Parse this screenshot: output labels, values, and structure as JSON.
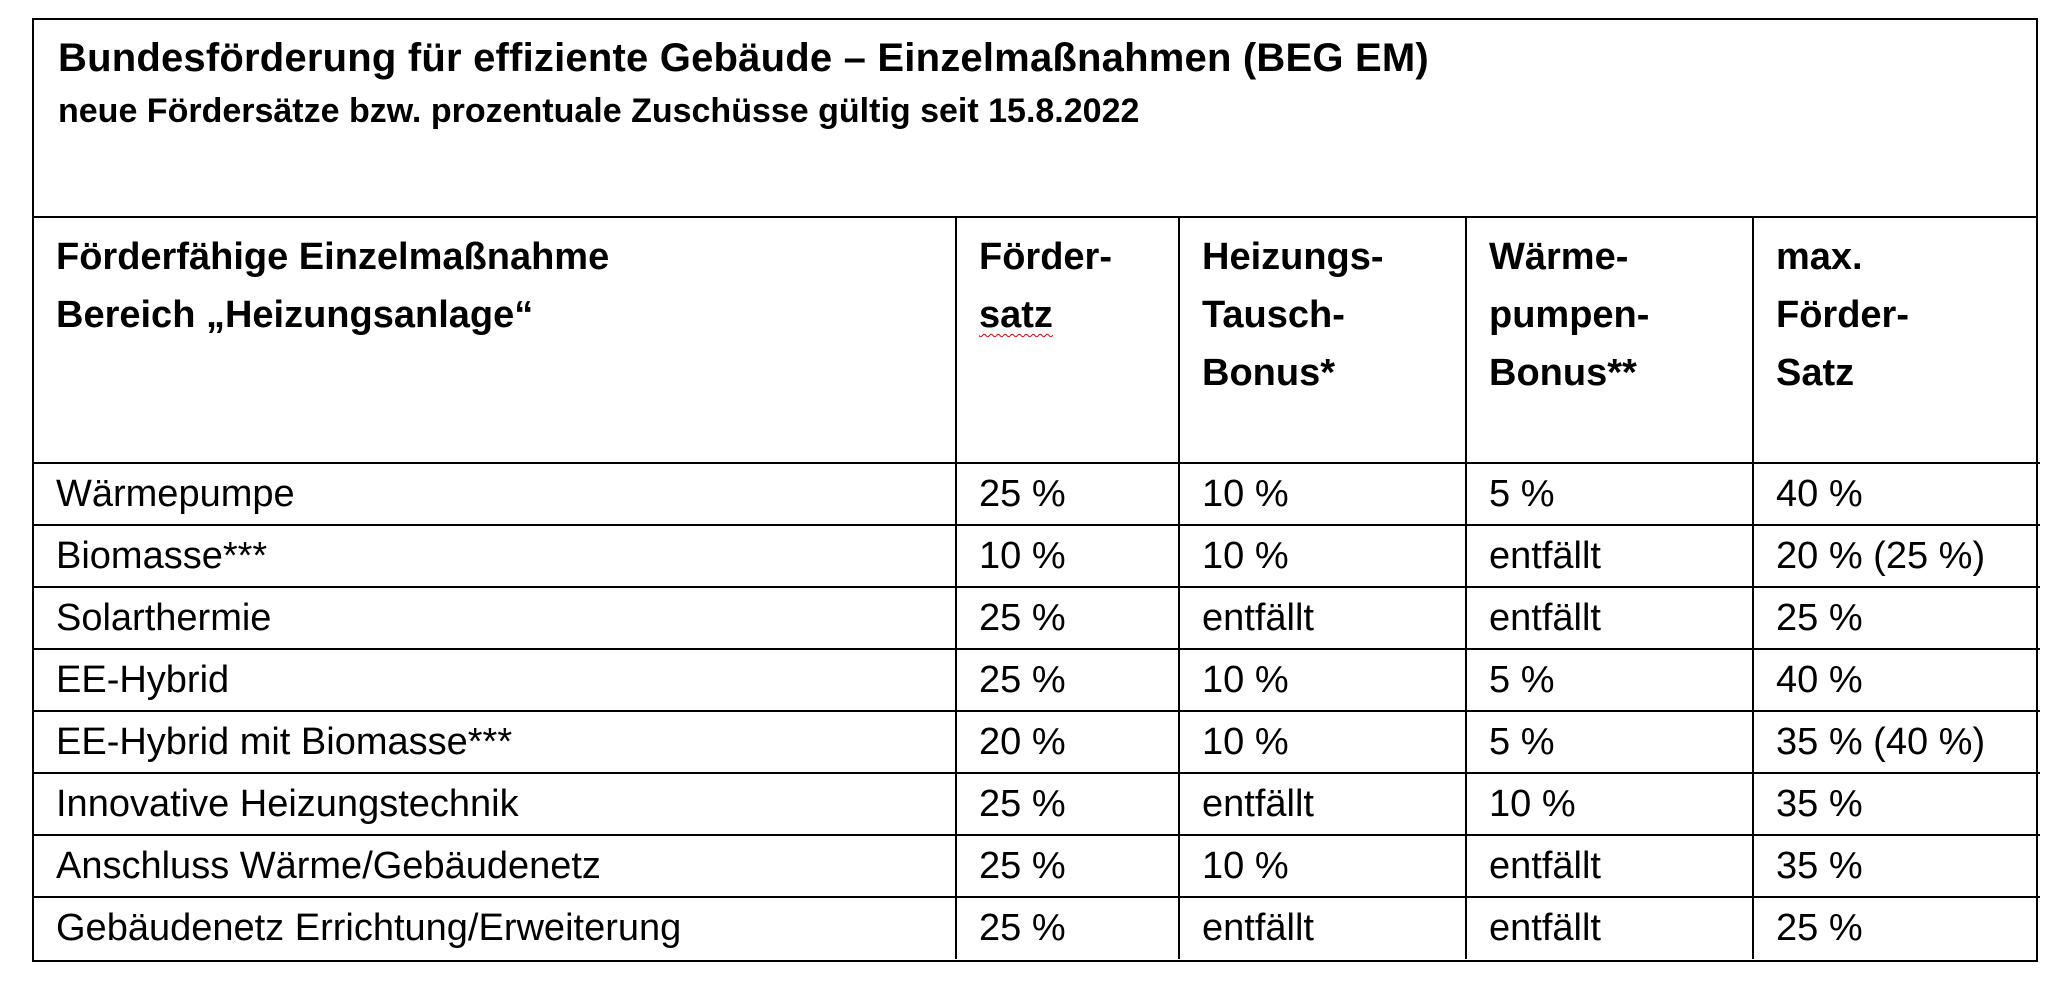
{
  "title": "Bundesförderung für effiziente Gebäude – Einzelmaßnahmen (BEG EM)",
  "subtitle": "neue Fördersätze bzw. prozentuale Zuschüsse gültig seit 15.8.2022",
  "table": {
    "headers": [
      [
        "Förderfähige Einzelmaßnahme",
        "Bereich „Heizungsanlage“"
      ],
      [
        "Förder-",
        "satz"
      ],
      [
        "Heizungs-",
        "Tausch-",
        "Bonus*"
      ],
      [
        "Wärme-",
        "pumpen-",
        "Bonus**"
      ],
      [
        "max.",
        "Förder-",
        "Satz"
      ]
    ],
    "rows": [
      [
        "Wärmepumpe",
        "25 %",
        "10 %",
        "5 %",
        "40 %"
      ],
      [
        "Biomasse***",
        "10 %",
        "10 %",
        "entfällt",
        "20 % (25 %)"
      ],
      [
        "Solarthermie",
        "25 %",
        "entfällt",
        "entfällt",
        "25 %"
      ],
      [
        "EE-Hybrid",
        "25 %",
        "10 %",
        "5 %",
        "40 %"
      ],
      [
        "EE-Hybrid mit Biomasse***",
        "20 %",
        "10 %",
        "5 %",
        "35 % (40 %)"
      ],
      [
        "Innovative Heizungstechnik",
        "25 %",
        "entfällt",
        "10 %",
        "35 %"
      ],
      [
        "Anschluss Wärme/Gebäudenetz",
        "25 %",
        "10 %",
        "entfällt",
        "35 %"
      ],
      [
        "Gebäudenetz Errichtung/Erweiterung",
        "25 %",
        "entfällt",
        "entfällt",
        "25 %"
      ]
    ]
  }
}
